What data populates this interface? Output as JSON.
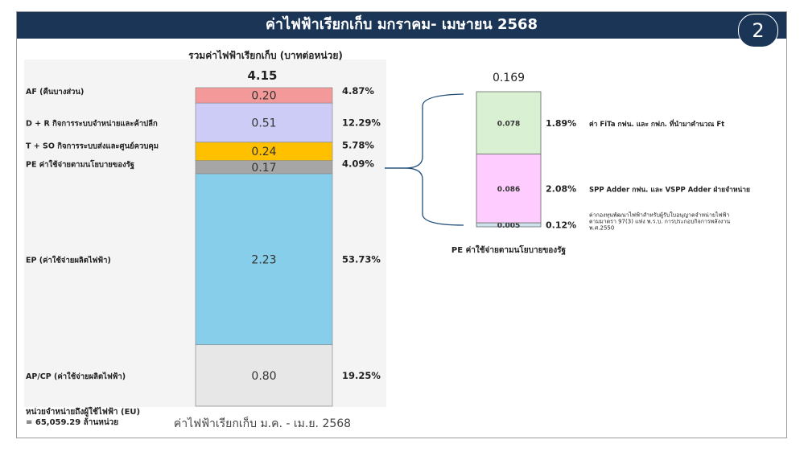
{
  "slide": {
    "title": "ค่าไฟฟ้าเรียกเก็บ มกราคม- เมษายน 2568",
    "badge": "2",
    "eu_label_line1": "หน่วยจำหน่ายถึงผู้ใช้ไฟฟ้า (EU)",
    "eu_label_line2": "= 65,059.29 ล้านหน่วย"
  },
  "chart_data": [
    {
      "type": "bar",
      "stacked": true,
      "title": "รวมค่าไฟฟ้าเรียกเก็บ (บาทต่อหน่วย)",
      "xlabel": "ค่าไฟฟ้าเรียกเก็บ ม.ค. - เม.ย. 2568",
      "total_label": "4.15",
      "total": 4.15,
      "series": [
        {
          "name": "AP/CP (ค่าใช้จ่ายผลิตไฟฟ้า)",
          "value": 0.8,
          "value_label": "0.80",
          "percent": "19.25%",
          "color": "#e7e7e7"
        },
        {
          "name": "EP (ค่าใช้จ่ายผลิตไฟฟ้า)",
          "value": 2.23,
          "value_label": "2.23",
          "percent": "53.73%",
          "color": "#87ceea"
        },
        {
          "name": "PE ค่าใช้จ่ายตามนโยบายของรัฐ",
          "value": 0.17,
          "value_label": "0.17",
          "percent": "4.09%",
          "color": "#a6a6a6"
        },
        {
          "name": "T + SO กิจการระบบส่งและศูนย์ควบคุม",
          "value": 0.24,
          "value_label": "0.24",
          "percent": "5.78%",
          "color": "#ffc000"
        },
        {
          "name": "D + R กิจการระบบจำหน่ายและค้าปลีก",
          "value": 0.51,
          "value_label": "0.51",
          "percent": "12.29%",
          "color": "#ccccf6"
        },
        {
          "name": "AF (คืนบางส่วน)",
          "value": 0.2,
          "value_label": "0.20",
          "percent": "4.87%",
          "color": "#f4999a"
        }
      ]
    },
    {
      "type": "bar",
      "stacked": true,
      "title": "PE ค่าใช้จ่ายตามนโยบายของรัฐ",
      "total_label": "0.169",
      "total": 0.169,
      "series": [
        {
          "name": "ค่ากองทุนพัฒนาไฟฟ้าสำหรับผู้รับใบอนุญาตจำหน่ายไฟฟ้า ตามมาตรา 97(3) แห่ง พ.ร.บ. การประกอบกิจการพลังงาน พ.ศ.2550",
          "name_lines": [
            "ค่ากองทุนพัฒนาไฟฟ้าสำหรับผู้รับใบอนุญาตจำหน่ายไฟฟ้า",
            "ตามมาตรา 97(3) แห่ง พ.ร.บ. การประกอบกิจการพลังงาน",
            "พ.ศ.2550"
          ],
          "value": 0.005,
          "value_label": "0.005",
          "percent": "0.12%",
          "color": "#cfe3ef"
        },
        {
          "name": "SPP Adder  กฟน. และ VSPP Adder ฝ่ายจำหน่าย",
          "name_lines": [
            "SPP Adder  กฟน. และ VSPP Adder ฝ่ายจำหน่าย"
          ],
          "value": 0.086,
          "value_label": "0.086",
          "percent": "2.08%",
          "color": "#ffccff"
        },
        {
          "name": "ค่า FiTa กฟน. และ กฟภ. ที่นำมาคำนวณ Ft",
          "name_lines": [
            "ค่า FiTa กฟน. และ กฟภ. ที่นำมาคำนวณ Ft"
          ],
          "value": 0.078,
          "value_label": "0.078",
          "percent": "1.89%",
          "color": "#d9f0d3"
        }
      ]
    }
  ]
}
